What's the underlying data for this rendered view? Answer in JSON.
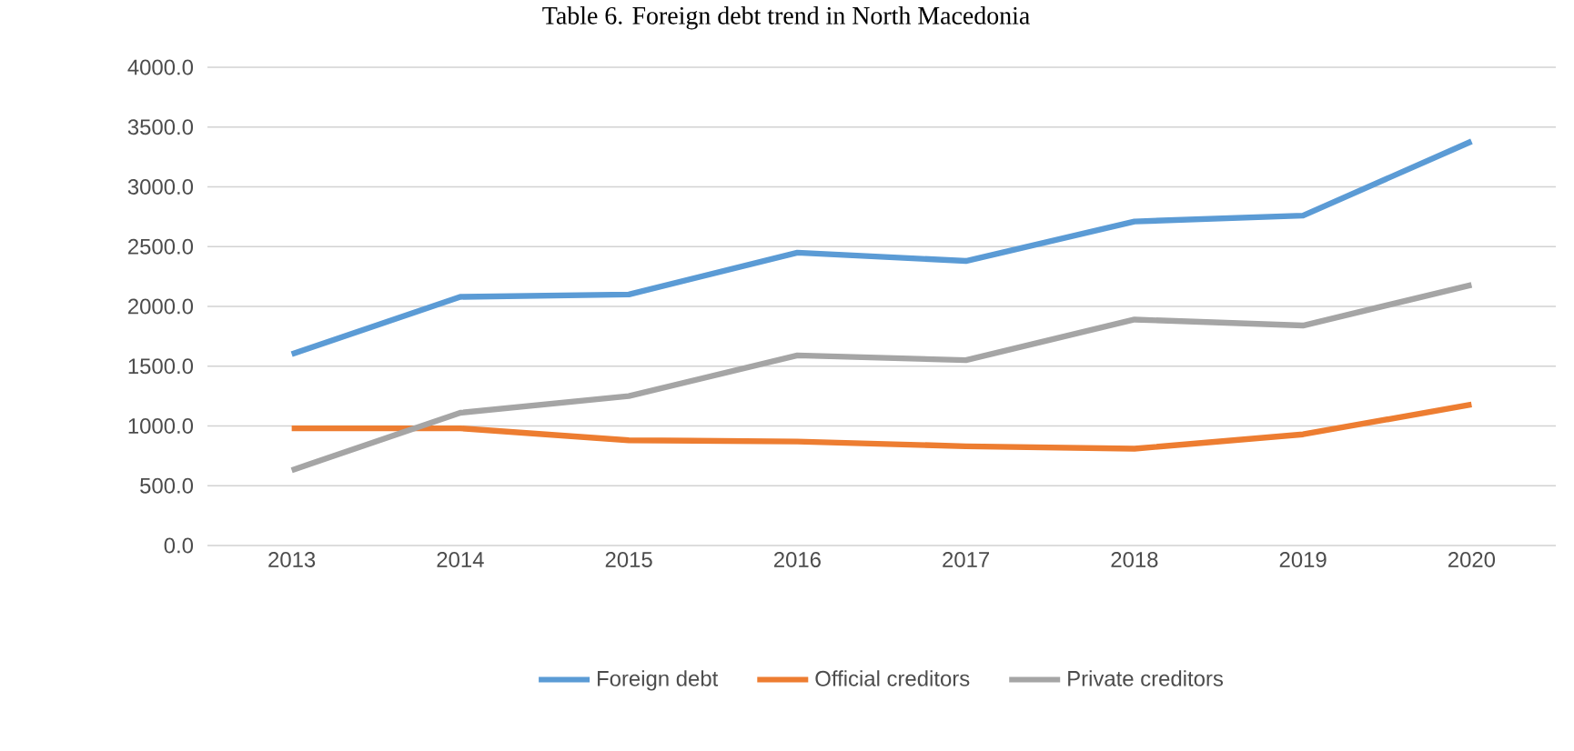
{
  "chart_data": {
    "type": "line",
    "title": "Table 6. Foreign debt trend in North Macedonia",
    "categories": [
      "2013",
      "2014",
      "2015",
      "2016",
      "2017",
      "2018",
      "2019",
      "2020"
    ],
    "series": [
      {
        "name": "Foreign debt",
        "color": "#5b9bd5",
        "values": [
          1600,
          2080,
          2100,
          2450,
          2380,
          2710,
          2760,
          3380
        ]
      },
      {
        "name": "Official creditors",
        "color": "#ed7d31",
        "values": [
          980,
          980,
          880,
          870,
          830,
          810,
          930,
          1180
        ]
      },
      {
        "name": "Private creditors",
        "color": "#a5a5a5",
        "values": [
          630,
          1110,
          1250,
          1590,
          1550,
          1890,
          1840,
          2180
        ]
      }
    ],
    "ylim": [
      0,
      4000
    ],
    "yticks": [
      {
        "value": 0,
        "label": "0.0"
      },
      {
        "value": 500,
        "label": "500.0"
      },
      {
        "value": 1000,
        "label": "1000.0"
      },
      {
        "value": 1500,
        "label": "1500.0"
      },
      {
        "value": 2000,
        "label": "2000.0"
      },
      {
        "value": 2500,
        "label": "2500.0"
      },
      {
        "value": 3000,
        "label": "3000.0"
      },
      {
        "value": 3500,
        "label": "3500.0"
      },
      {
        "value": 4000,
        "label": "4000.0"
      }
    ],
    "grid": "y",
    "legend": "bottom",
    "marker": "none",
    "line_style": "solid"
  }
}
